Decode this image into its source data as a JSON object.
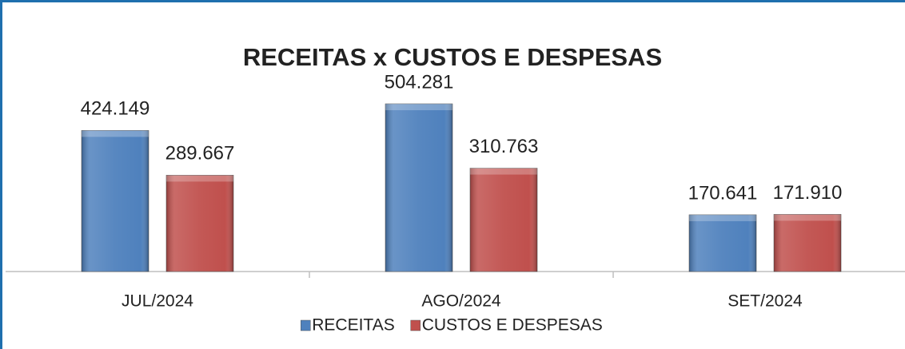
{
  "chart_data": {
    "type": "bar",
    "title": "RECEITAS x CUSTOS E DESPESAS",
    "categories": [
      "JUL/2024",
      "AGO/2024",
      "SET/2024"
    ],
    "series": [
      {
        "name": "RECEITAS",
        "color": "#4f81bd",
        "values": [
          424149,
          504281,
          170641
        ],
        "value_labels": [
          "424.149",
          "504.281",
          "170.641"
        ]
      },
      {
        "name": "CUSTOS E DESPESAS",
        "color": "#c0504d",
        "values": [
          289667,
          310763,
          171910
        ],
        "value_labels": [
          "289.667",
          "310.763",
          "171.910"
        ]
      }
    ],
    "legend": "bottom"
  }
}
